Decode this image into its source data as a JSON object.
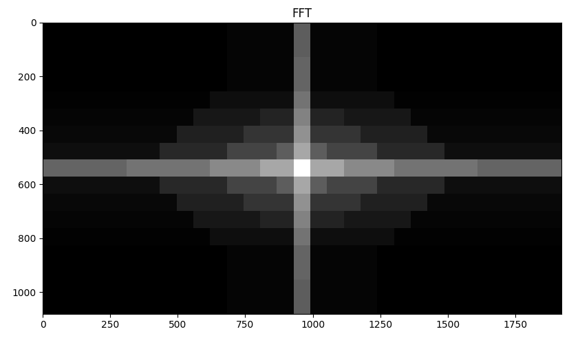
{
  "chart_data": {
    "type": "heatmap",
    "title": "FFT",
    "xlim": [
      0,
      1920
    ],
    "ylim": [
      1080,
      0
    ],
    "xticks": [
      0,
      250,
      500,
      750,
      1000,
      1250,
      1500,
      1750
    ],
    "yticks": [
      0,
      200,
      400,
      600,
      800,
      1000
    ],
    "grid": false,
    "cells": [
      [
        72,
        72,
        72,
        72,
        72,
        72,
        72,
        72,
        72,
        72,
        72,
        76,
        76,
        76,
        76,
        135,
        76,
        76,
        76,
        76,
        72,
        72,
        72,
        72,
        72,
        72,
        72,
        72,
        72,
        72,
        72
      ],
      [
        72,
        72,
        72,
        72,
        72,
        72,
        72,
        72,
        72,
        72,
        72,
        76,
        76,
        76,
        76,
        135,
        76,
        76,
        76,
        76,
        72,
        72,
        72,
        72,
        72,
        72,
        72,
        72,
        72,
        72,
        72
      ],
      [
        72,
        72,
        72,
        72,
        72,
        72,
        72,
        72,
        72,
        72,
        72,
        76,
        76,
        76,
        76,
        140,
        76,
        76,
        76,
        76,
        72,
        72,
        72,
        72,
        72,
        72,
        72,
        72,
        72,
        72,
        72
      ],
      [
        72,
        72,
        72,
        72,
        72,
        72,
        72,
        72,
        72,
        72,
        72,
        76,
        76,
        76,
        76,
        140,
        76,
        76,
        76,
        76,
        72,
        72,
        72,
        72,
        72,
        72,
        72,
        72,
        72,
        72,
        72
      ],
      [
        74,
        74,
        74,
        74,
        74,
        74,
        74,
        74,
        74,
        74,
        82,
        82,
        82,
        82,
        82,
        150,
        82,
        82,
        82,
        82,
        82,
        74,
        74,
        74,
        74,
        74,
        74,
        74,
        74,
        74,
        74
      ],
      [
        76,
        76,
        76,
        76,
        76,
        76,
        76,
        76,
        76,
        88,
        88,
        88,
        88,
        96,
        96,
        160,
        96,
        96,
        88,
        88,
        88,
        88,
        76,
        76,
        76,
        76,
        76,
        76,
        76,
        76,
        76
      ],
      [
        78,
        78,
        78,
        78,
        78,
        78,
        78,
        78,
        94,
        94,
        94,
        94,
        108,
        108,
        108,
        170,
        108,
        108,
        108,
        94,
        94,
        94,
        94,
        78,
        78,
        78,
        78,
        78,
        78,
        78,
        78
      ],
      [
        82,
        82,
        82,
        82,
        82,
        82,
        82,
        100,
        100,
        100,
        100,
        118,
        118,
        118,
        135,
        185,
        135,
        118,
        118,
        118,
        100,
        100,
        100,
        100,
        82,
        82,
        82,
        82,
        82,
        82,
        82
      ],
      [
        140,
        140,
        140,
        140,
        140,
        150,
        150,
        150,
        150,
        150,
        165,
        165,
        165,
        185,
        185,
        245,
        185,
        185,
        165,
        165,
        165,
        150,
        150,
        150,
        150,
        150,
        140,
        140,
        140,
        140,
        140
      ],
      [
        82,
        82,
        82,
        82,
        82,
        82,
        82,
        100,
        100,
        100,
        100,
        118,
        118,
        118,
        135,
        185,
        135,
        118,
        118,
        118,
        100,
        100,
        100,
        100,
        82,
        82,
        82,
        82,
        82,
        82,
        82
      ],
      [
        78,
        78,
        78,
        78,
        78,
        78,
        78,
        78,
        94,
        94,
        94,
        94,
        108,
        108,
        108,
        170,
        108,
        108,
        108,
        94,
        94,
        94,
        94,
        78,
        78,
        78,
        78,
        78,
        78,
        78,
        78
      ],
      [
        76,
        76,
        76,
        76,
        76,
        76,
        76,
        76,
        76,
        88,
        88,
        88,
        88,
        96,
        96,
        160,
        96,
        96,
        88,
        88,
        88,
        88,
        76,
        76,
        76,
        76,
        76,
        76,
        76,
        76,
        76
      ],
      [
        74,
        74,
        74,
        74,
        74,
        74,
        74,
        74,
        74,
        74,
        82,
        82,
        82,
        82,
        82,
        150,
        82,
        82,
        82,
        82,
        82,
        74,
        74,
        74,
        74,
        74,
        74,
        74,
        74,
        74,
        74
      ],
      [
        72,
        72,
        72,
        72,
        72,
        72,
        72,
        72,
        72,
        72,
        72,
        76,
        76,
        76,
        76,
        140,
        76,
        76,
        76,
        76,
        72,
        72,
        72,
        72,
        72,
        72,
        72,
        72,
        72,
        72,
        72
      ],
      [
        72,
        72,
        72,
        72,
        72,
        72,
        72,
        72,
        72,
        72,
        72,
        76,
        76,
        76,
        76,
        140,
        76,
        76,
        76,
        76,
        72,
        72,
        72,
        72,
        72,
        72,
        72,
        72,
        72,
        72,
        72
      ],
      [
        72,
        72,
        72,
        72,
        72,
        72,
        72,
        72,
        72,
        72,
        72,
        76,
        76,
        76,
        76,
        135,
        76,
        76,
        76,
        76,
        72,
        72,
        72,
        72,
        72,
        72,
        72,
        72,
        72,
        72,
        72
      ],
      [
        72,
        72,
        72,
        72,
        72,
        72,
        72,
        72,
        72,
        72,
        72,
        76,
        76,
        76,
        76,
        135,
        76,
        76,
        76,
        76,
        72,
        72,
        72,
        72,
        72,
        72,
        72,
        72,
        72,
        72,
        72
      ]
    ]
  }
}
